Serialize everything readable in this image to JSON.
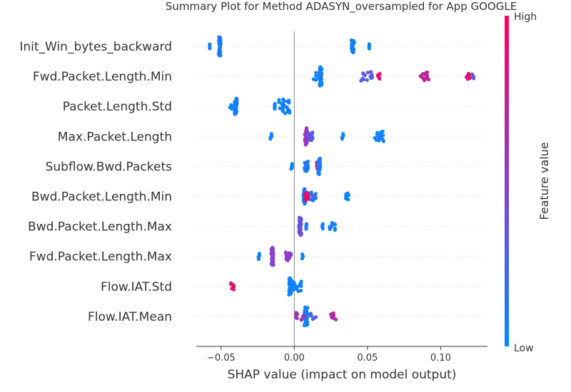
{
  "chart_data": {
    "type": "scatter",
    "subtype": "shap-beeswarm",
    "title": "Summary Plot for Method ADASYN_oversampled for App GOOGLE",
    "xlabel": "SHAP value (impact on model output)",
    "xlim": [
      -0.067,
      0.132
    ],
    "xticks": [
      {
        "value": -0.05,
        "label": "−0.05"
      },
      {
        "value": 0.0,
        "label": "0.00"
      },
      {
        "value": 0.05,
        "label": "0.05"
      },
      {
        "value": 0.1,
        "label": "0.10"
      }
    ],
    "colorbar": {
      "title": "Feature value",
      "high_label": "High",
      "low_label": "Low",
      "low_color": "#008bfb",
      "high_color": "#ff0052"
    },
    "features": [
      {
        "name": "Init_Win_bytes_backward",
        "clusters": [
          {
            "x": -0.058,
            "n": 3,
            "v": 0.05
          },
          {
            "x": -0.051,
            "n": 40,
            "v": 0.1,
            "spread": 0.0007
          },
          {
            "x": 0.04,
            "n": 22,
            "v": 0.05,
            "spread": 0.001
          },
          {
            "x": 0.051,
            "n": 4,
            "v": 0.05
          }
        ]
      },
      {
        "name": "Fwd.Packet.Length.Min",
        "clusters": [
          {
            "x": 0.018,
            "n": 42,
            "v": 0.05,
            "spread": 0.0008
          },
          {
            "x": 0.016,
            "n": 10,
            "v": 0.05,
            "spread": 0.003
          },
          {
            "x": 0.05,
            "n": 14,
            "v": 0.3,
            "spread": 0.005
          },
          {
            "x": 0.058,
            "n": 5,
            "v": 0.9,
            "spread": 0.0015
          },
          {
            "x": 0.089,
            "n": 12,
            "v": 0.7,
            "spread": 0.003
          },
          {
            "x": 0.119,
            "n": 6,
            "v": 0.9,
            "spread": 0.0015
          },
          {
            "x": 0.122,
            "n": 3,
            "v": 0.3
          }
        ]
      },
      {
        "name": "Packet.Length.Std",
        "clusters": [
          {
            "x": -0.04,
            "n": 30,
            "v": 0.1,
            "spread": 0.0008
          },
          {
            "x": -0.042,
            "n": 5,
            "v": 0.05,
            "spread": 0.002
          },
          {
            "x": -0.007,
            "n": 26,
            "v": 0.05,
            "spread": 0.004
          },
          {
            "x": -0.013,
            "n": 5,
            "v": 0.05
          }
        ]
      },
      {
        "name": "Max.Packet.Length",
        "clusters": [
          {
            "x": -0.016,
            "n": 5,
            "v": 0.05
          },
          {
            "x": 0.008,
            "n": 32,
            "v": 0.6,
            "spread": 0.0008
          },
          {
            "x": 0.011,
            "n": 12,
            "v": 0.3,
            "spread": 0.002
          },
          {
            "x": 0.033,
            "n": 5,
            "v": 0.05
          },
          {
            "x": 0.058,
            "n": 16,
            "v": 0.05,
            "spread": 0.003
          }
        ]
      },
      {
        "name": "Subflow.Bwd.Packets",
        "clusters": [
          {
            "x": -0.002,
            "n": 5,
            "v": 0.05
          },
          {
            "x": 0.008,
            "n": 16,
            "v": 0.1,
            "spread": 0.0015
          },
          {
            "x": 0.016,
            "n": 12,
            "v": 0.7,
            "spread": 0.0008
          },
          {
            "x": 0.017,
            "n": 30,
            "v": 0.1,
            "spread": 0.0007
          }
        ]
      },
      {
        "name": "Bwd.Packet.Length.Min",
        "clusters": [
          {
            "x": 0.007,
            "n": 28,
            "v": 0.1,
            "spread": 0.0008
          },
          {
            "x": 0.009,
            "n": 10,
            "v": 0.9,
            "spread": 0.0015
          },
          {
            "x": 0.013,
            "n": 12,
            "v": 0.2,
            "spread": 0.002
          },
          {
            "x": 0.036,
            "n": 8,
            "v": 0.05,
            "spread": 0.0012
          }
        ]
      },
      {
        "name": "Bwd.Packet.Length.Max",
        "clusters": [
          {
            "x": 0.004,
            "n": 34,
            "v": 0.4,
            "spread": 0.0008
          },
          {
            "x": 0.008,
            "n": 5,
            "v": 0.1
          },
          {
            "x": 0.019,
            "n": 4,
            "v": 0.05
          },
          {
            "x": 0.026,
            "n": 10,
            "v": 0.05,
            "spread": 0.002
          }
        ]
      },
      {
        "name": "Fwd.Packet.Length.Max",
        "clusters": [
          {
            "x": -0.024,
            "n": 6,
            "v": 0.05
          },
          {
            "x": -0.015,
            "n": 34,
            "v": 0.5,
            "spread": 0.0008
          },
          {
            "x": -0.004,
            "n": 12,
            "v": 0.5,
            "spread": 0.002
          },
          {
            "x": 0.006,
            "n": 3,
            "v": 0.05
          }
        ]
      },
      {
        "name": "Flow.IAT.Std",
        "clusters": [
          {
            "x": -0.042,
            "n": 8,
            "v": 0.9,
            "spread": 0.0015
          },
          {
            "x": -0.003,
            "n": 32,
            "v": 0.05,
            "spread": 0.0008
          },
          {
            "x": 0.002,
            "n": 16,
            "v": 0.05,
            "spread": 0.003
          }
        ]
      },
      {
        "name": "Flow.IAT.Mean",
        "clusters": [
          {
            "x": 0.008,
            "n": 36,
            "v": 0.1,
            "spread": 0.0012
          },
          {
            "x": 0.004,
            "n": 10,
            "v": 0.6,
            "spread": 0.003
          },
          {
            "x": 0.013,
            "n": 6,
            "v": 0.3,
            "spread": 0.002
          },
          {
            "x": 0.027,
            "n": 8,
            "v": 0.7,
            "spread": 0.002
          }
        ]
      }
    ]
  }
}
